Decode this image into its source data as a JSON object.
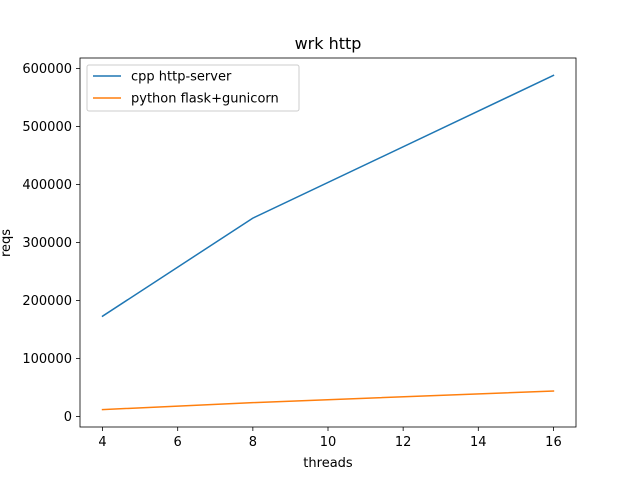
{
  "chart_data": {
    "type": "line",
    "title": "wrk http",
    "xlabel": "threads",
    "ylabel": "reqs",
    "xlim": [
      3.4,
      16.6
    ],
    "ylim": [
      -18000,
      618000
    ],
    "x_ticks": [
      4,
      6,
      8,
      10,
      12,
      14,
      16
    ],
    "y_ticks": [
      0,
      100000,
      200000,
      300000,
      400000,
      500000,
      600000
    ],
    "x_tick_labels": [
      "4",
      "6",
      "8",
      "10",
      "12",
      "14",
      "16"
    ],
    "y_tick_labels": [
      "0",
      "100000",
      "200000",
      "300000",
      "400000",
      "500000",
      "600000"
    ],
    "grid": false,
    "legend_position": "top-left",
    "series": [
      {
        "name": "cpp http-server",
        "color": "#1f77b4",
        "x": [
          4,
          8,
          16
        ],
        "y": [
          173000,
          342000,
          588000
        ]
      },
      {
        "name": "python flask+gunicorn",
        "color": "#ff7f0e",
        "x": [
          4,
          8,
          16
        ],
        "y": [
          12000,
          24000,
          44000
        ]
      }
    ]
  }
}
